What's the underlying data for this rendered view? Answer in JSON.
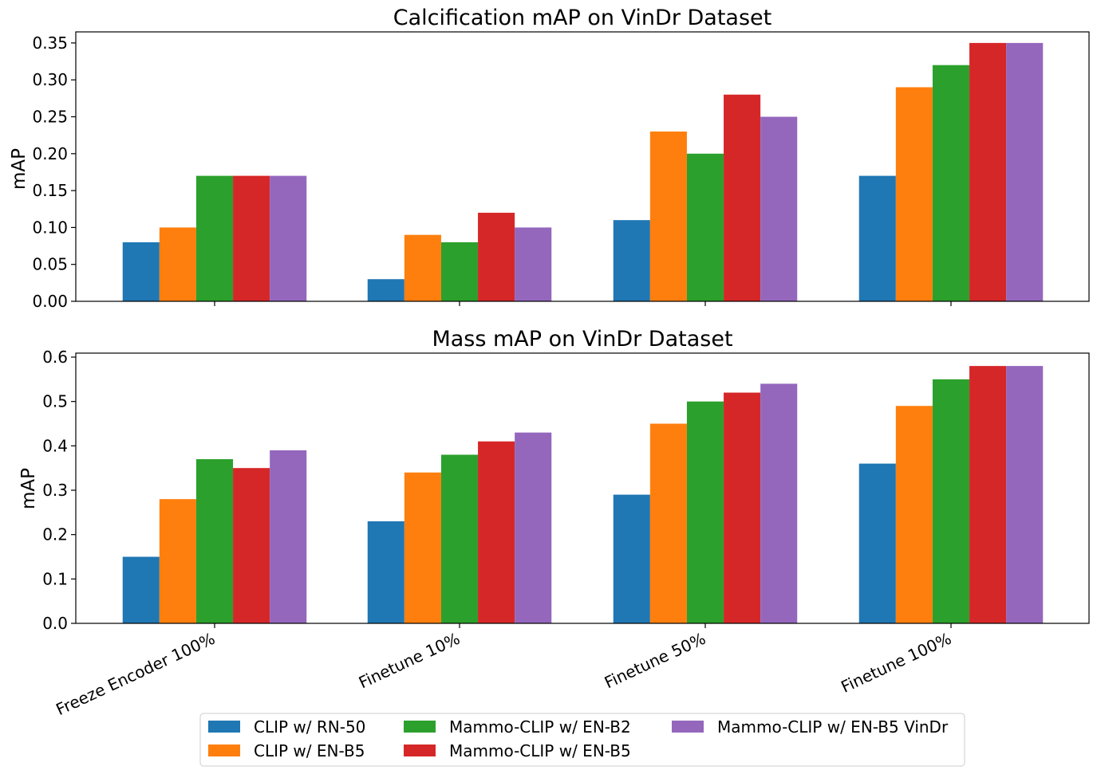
{
  "chart_data": [
    {
      "type": "bar",
      "title": "Calcification mAP on VinDr Dataset",
      "xlabel": "",
      "ylabel": "mAP",
      "ylim": [
        0,
        0.365
      ],
      "yticks": [
        "0.00",
        "0.05",
        "0.10",
        "0.15",
        "0.20",
        "0.25",
        "0.30",
        "0.35"
      ],
      "show_x_tick_labels": false,
      "categories": [
        "Freeze Encoder 100%",
        "Finetune 10%",
        "Finetune 50%",
        "Finetune 100%"
      ],
      "series": [
        {
          "name": "CLIP w/ RN-50",
          "color": "#1f77b4",
          "values": [
            0.08,
            0.03,
            0.11,
            0.17
          ]
        },
        {
          "name": "CLIP w/ EN-B5",
          "color": "#ff7f0e",
          "values": [
            0.1,
            0.09,
            0.23,
            0.29
          ]
        },
        {
          "name": "Mammo-CLIP w/ EN-B2",
          "color": "#2ca02c",
          "values": [
            0.17,
            0.08,
            0.2,
            0.32
          ]
        },
        {
          "name": "Mammo-CLIP w/ EN-B5",
          "color": "#d62728",
          "values": [
            0.17,
            0.12,
            0.28,
            0.35
          ]
        },
        {
          "name": "Mammo-CLIP w/ EN-B5 VinDr",
          "color": "#9467bd",
          "values": [
            0.17,
            0.1,
            0.25,
            0.35
          ]
        }
      ],
      "grid": false
    },
    {
      "type": "bar",
      "title": "Mass mAP on VinDr Dataset",
      "xlabel": "",
      "ylabel": "mAP",
      "ylim": [
        0,
        0.609
      ],
      "yticks": [
        "0.0",
        "0.1",
        "0.2",
        "0.3",
        "0.4",
        "0.5",
        "0.6"
      ],
      "show_x_tick_labels": true,
      "categories": [
        "Freeze Encoder 100%",
        "Finetune 10%",
        "Finetune 50%",
        "Finetune 100%"
      ],
      "series": [
        {
          "name": "CLIP w/ RN-50",
          "color": "#1f77b4",
          "values": [
            0.15,
            0.23,
            0.29,
            0.36
          ]
        },
        {
          "name": "CLIP w/ EN-B5",
          "color": "#ff7f0e",
          "values": [
            0.28,
            0.34,
            0.45,
            0.49
          ]
        },
        {
          "name": "Mammo-CLIP w/ EN-B2",
          "color": "#2ca02c",
          "values": [
            0.37,
            0.38,
            0.5,
            0.55
          ]
        },
        {
          "name": "Mammo-CLIP w/ EN-B5",
          "color": "#d62728",
          "values": [
            0.35,
            0.41,
            0.52,
            0.58
          ]
        },
        {
          "name": "Mammo-CLIP w/ EN-B5 VinDr",
          "color": "#9467bd",
          "values": [
            0.39,
            0.43,
            0.54,
            0.58
          ]
        }
      ],
      "grid": false
    }
  ],
  "legend": {
    "placement": "bottom-center",
    "columns": 3,
    "entries": [
      {
        "name": "CLIP w/ RN-50",
        "color": "#1f77b4"
      },
      {
        "name": "CLIP w/ EN-B5",
        "color": "#ff7f0e"
      },
      {
        "name": "Mammo-CLIP w/ EN-B2",
        "color": "#2ca02c"
      },
      {
        "name": "Mammo-CLIP w/ EN-B5",
        "color": "#d62728"
      },
      {
        "name": "Mammo-CLIP w/ EN-B5 VinDr",
        "color": "#9467bd"
      }
    ]
  }
}
